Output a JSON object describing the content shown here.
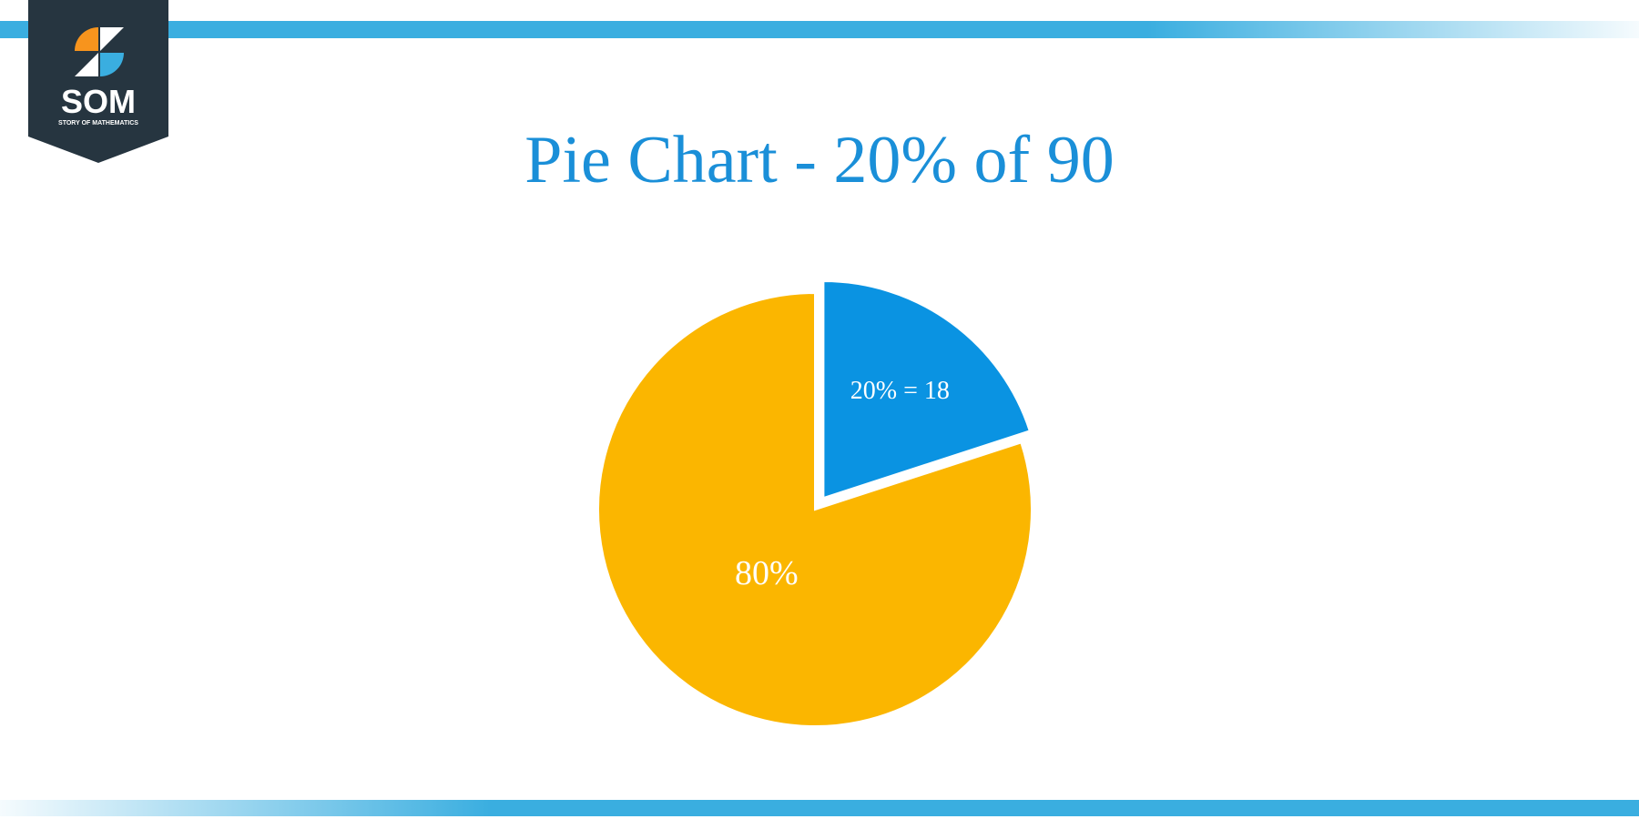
{
  "logo": {
    "text": "SOM",
    "subtitle": "STORY OF MATHEMATICS"
  },
  "chart_data": {
    "type": "pie",
    "title": "Pie Chart - 20% of 90",
    "categories": [
      null,
      null
    ],
    "values": [
      20,
      80
    ],
    "value_labels": [
      "20% = 18",
      "80%"
    ],
    "colors": [
      "#0a93e2",
      "#fbb600"
    ],
    "exploded": [
      true,
      false
    ]
  }
}
